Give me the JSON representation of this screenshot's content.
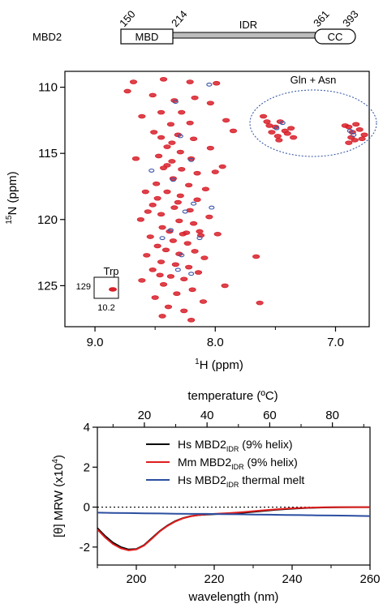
{
  "domain_diagram": {
    "protein_label": "MBD2",
    "positions": [
      "150",
      "214",
      "361",
      "393"
    ],
    "domains": [
      "MBD",
      "IDR",
      "CC"
    ]
  },
  "chart_data": [
    {
      "type": "scatter",
      "title": "",
      "xlabel": "1H (ppm)",
      "ylabel": "15N (ppm)",
      "xlim": [
        9.25,
        6.72
      ],
      "ylim": [
        108.8,
        128.1
      ],
      "x_reversed": true,
      "y_reversed": true,
      "xticks": [
        "9.0",
        "8.0",
        "7.0"
      ],
      "yticks": [
        "110",
        "115",
        "120",
        "125"
      ],
      "grid": false,
      "annotations": {
        "gln_asn": "Gln + Asn",
        "trp": "Trp",
        "trp_inset_y": "129",
        "trp_inset_x": "10.2"
      },
      "colors": {
        "red": "#d8202a",
        "blue": "#3b55a8"
      },
      "series": [
        {
          "name": "",
          "color": "#d8202a",
          "points": [
            [
              8.68,
              109.6
            ],
            [
              8.43,
              109.4
            ],
            [
              8.21,
              109.6
            ],
            [
              7.99,
              109.7
            ],
            [
              8.73,
              110.3
            ],
            [
              8.52,
              110.6
            ],
            [
              8.17,
              110.8
            ],
            [
              8.34,
              111.0
            ],
            [
              8.04,
              111.2
            ],
            [
              8.45,
              111.9
            ],
            [
              8.28,
              111.9
            ],
            [
              8.61,
              112.2
            ],
            [
              7.91,
              112.5
            ],
            [
              8.21,
              112.7
            ],
            [
              8.37,
              112.8
            ],
            [
              7.85,
              113.3
            ],
            [
              8.51,
              113.4
            ],
            [
              8.45,
              113.8
            ],
            [
              8.31,
              113.6
            ],
            [
              8.18,
              113.9
            ],
            [
              8.4,
              114.5
            ],
            [
              8.04,
              114.6
            ],
            [
              8.29,
              114.9
            ],
            [
              8.47,
              115.2
            ],
            [
              8.2,
              115.4
            ],
            [
              8.36,
              115.6
            ],
            [
              8.66,
              115.4
            ],
            [
              8.43,
              116.1
            ],
            [
              8.28,
              116.2
            ],
            [
              8.15,
              116.5
            ],
            [
              8.0,
              116.4
            ],
            [
              7.94,
              116.0
            ],
            [
              8.35,
              116.9
            ],
            [
              8.49,
              117.3
            ],
            [
              8.22,
              117.4
            ],
            [
              8.08,
              117.7
            ],
            [
              8.4,
              117.9
            ],
            [
              8.29,
              118.2
            ],
            [
              8.15,
              118.5
            ],
            [
              8.52,
              118.9
            ],
            [
              8.34,
              119.1
            ],
            [
              8.21,
              119.3
            ],
            [
              8.45,
              119.6
            ],
            [
              8.05,
              119.8
            ],
            [
              8.62,
              120.0
            ],
            [
              8.3,
              120.1
            ],
            [
              8.18,
              120.3
            ],
            [
              8.44,
              120.6
            ],
            [
              8.38,
              120.9
            ],
            [
              8.27,
              121.1
            ],
            [
              8.12,
              121.2
            ],
            [
              8.54,
              121.3
            ],
            [
              7.98,
              121.1
            ],
            [
              8.35,
              121.6
            ],
            [
              8.23,
              121.8
            ],
            [
              8.48,
              122.0
            ],
            [
              8.41,
              122.3
            ],
            [
              8.17,
              122.4
            ],
            [
              8.3,
              122.6
            ],
            [
              8.57,
              122.7
            ],
            [
              8.09,
              122.9
            ],
            [
              8.45,
              123.2
            ],
            [
              8.33,
              123.4
            ],
            [
              8.22,
              123.6
            ],
            [
              8.52,
              123.8
            ],
            [
              8.14,
              124.0
            ],
            [
              8.37,
              124.3
            ],
            [
              8.26,
              124.5
            ],
            [
              8.61,
              124.6
            ],
            [
              8.43,
              124.9
            ],
            [
              7.92,
              125.0
            ],
            [
              8.19,
              125.3
            ],
            [
              8.32,
              125.6
            ],
            [
              8.5,
              125.9
            ],
            [
              8.1,
              126.2
            ],
            [
              8.39,
              126.6
            ],
            [
              8.26,
              126.9
            ],
            [
              8.44,
              127.3
            ],
            [
              8.2,
              127.6
            ],
            [
              7.66,
              122.8
            ],
            [
              7.63,
              126.3
            ],
            [
              8.48,
              118.4
            ],
            [
              8.36,
              114.2
            ],
            [
              8.58,
              117.9
            ],
            [
              8.24,
              121.0
            ],
            [
              8.46,
              124.2
            ],
            [
              8.4,
              115.9
            ],
            [
              8.31,
              118.7
            ],
            [
              8.13,
              120.9
            ],
            [
              8.56,
              119.4
            ],
            [
              7.5,
              113.0
            ],
            [
              7.46,
              112.6
            ],
            [
              7.42,
              113.3
            ],
            [
              7.55,
              112.9
            ],
            [
              7.4,
              113.5
            ],
            [
              7.48,
              113.7
            ],
            [
              7.53,
              113.4
            ],
            [
              7.37,
              113.1
            ],
            [
              7.6,
              112.2
            ],
            [
              7.47,
              114.0
            ],
            [
              7.35,
              113.8
            ],
            [
              7.57,
              112.6
            ],
            [
              6.89,
              113.0
            ],
            [
              6.86,
              113.4
            ],
            [
              6.83,
              112.8
            ],
            [
              6.87,
              113.8
            ],
            [
              6.92,
              112.9
            ],
            [
              6.8,
              113.2
            ],
            [
              6.84,
              114.0
            ],
            [
              6.78,
              113.9
            ],
            [
              6.89,
              114.2
            ],
            [
              6.76,
              113.6
            ]
          ]
        },
        {
          "name": "",
          "color": "#3b55a8",
          "points": [
            [
              8.05,
              109.8
            ],
            [
              8.33,
              111.1
            ],
            [
              8.29,
              113.7
            ],
            [
              8.2,
              115.5
            ],
            [
              8.03,
              119.1
            ],
            [
              8.25,
              119.4
            ],
            [
              8.37,
              120.8
            ],
            [
              8.13,
              121.4
            ],
            [
              8.28,
              122.7
            ],
            [
              8.53,
              116.3
            ],
            [
              8.2,
              124.1
            ],
            [
              8.35,
              117.0
            ],
            [
              8.44,
              121.4
            ],
            [
              8.18,
              118.8
            ],
            [
              7.49,
              113.1
            ],
            [
              7.44,
              112.7
            ],
            [
              6.88,
              113.3
            ],
            [
              6.85,
              113.6
            ],
            [
              8.31,
              123.8
            ]
          ]
        }
      ],
      "trp_inset_point": [
        10.22,
        129.2
      ]
    },
    {
      "type": "line",
      "title": "",
      "xlabel": "wavelength (nm)",
      "ylabel": "[θ] MRW (x10",
      "ylabel_exponent": "4",
      "ylabel_close": ")",
      "secondary_xlabel": "temperature (ºC)",
      "xlim": [
        190,
        260
      ],
      "ylim": [
        -2.9,
        4
      ],
      "secondary_xlim": [
        5,
        92
      ],
      "xticks": [
        "200",
        "220",
        "240",
        "260"
      ],
      "yticks": [
        "4",
        "2",
        "0",
        "-2"
      ],
      "secondary_xticks": [
        "20",
        "40",
        "60",
        "80"
      ],
      "grid": false,
      "legend_position": "top-right",
      "legend": [
        {
          "prefix": "Hs MBD2",
          "subscript": "IDR",
          "suffix": " (9% helix)",
          "color": "#000000"
        },
        {
          "prefix": "Mm MBD2",
          "subscript": "IDR",
          "suffix": " (9% helix)",
          "color": "#e01e1e"
        },
        {
          "prefix": "Hs MBD2",
          "subscript": "IDR",
          "suffix": " thermal melt",
          "color": "#2b4ea0"
        }
      ],
      "series": [
        {
          "name": "Hs MBD2IDR (9% helix)",
          "color": "#000000",
          "x": [
            190,
            192,
            194,
            196,
            198,
            200,
            202,
            204,
            206,
            208,
            210,
            212,
            214,
            216,
            218,
            220,
            224,
            228,
            232,
            236,
            240,
            244,
            248,
            252,
            256,
            260
          ],
          "y": [
            -1.05,
            -1.45,
            -1.78,
            -2.0,
            -2.12,
            -2.1,
            -1.9,
            -1.55,
            -1.2,
            -0.92,
            -0.7,
            -0.55,
            -0.45,
            -0.4,
            -0.37,
            -0.35,
            -0.32,
            -0.27,
            -0.2,
            -0.13,
            -0.08,
            -0.04,
            -0.02,
            -0.01,
            0.0,
            0.0
          ]
        },
        {
          "name": "Mm MBD2IDR (9% helix)",
          "color": "#e01e1e",
          "x": [
            190,
            192,
            194,
            196,
            198,
            200,
            202,
            204,
            206,
            208,
            210,
            212,
            214,
            216,
            218,
            220,
            224,
            228,
            232,
            236,
            240,
            244,
            248,
            252,
            256,
            260
          ],
          "y": [
            -1.12,
            -1.52,
            -1.85,
            -2.06,
            -2.16,
            -2.12,
            -1.92,
            -1.58,
            -1.22,
            -0.94,
            -0.72,
            -0.56,
            -0.46,
            -0.4,
            -0.36,
            -0.34,
            -0.3,
            -0.24,
            -0.17,
            -0.11,
            -0.06,
            -0.03,
            -0.01,
            0.0,
            0.0,
            0.0
          ]
        },
        {
          "name": "Hs MBD2IDR thermal melt",
          "color": "#2b4ea0",
          "x": [
            5,
            10,
            15,
            20,
            25,
            30,
            35,
            40,
            45,
            50,
            55,
            60,
            65,
            70,
            75,
            80,
            85,
            92
          ],
          "y": [
            -0.28,
            -0.29,
            -0.3,
            -0.31,
            -0.32,
            -0.33,
            -0.34,
            -0.34,
            -0.35,
            -0.36,
            -0.37,
            -0.38,
            -0.39,
            -0.4,
            -0.41,
            -0.42,
            -0.43,
            -0.45
          ]
        }
      ],
      "zero_line": true
    }
  ]
}
